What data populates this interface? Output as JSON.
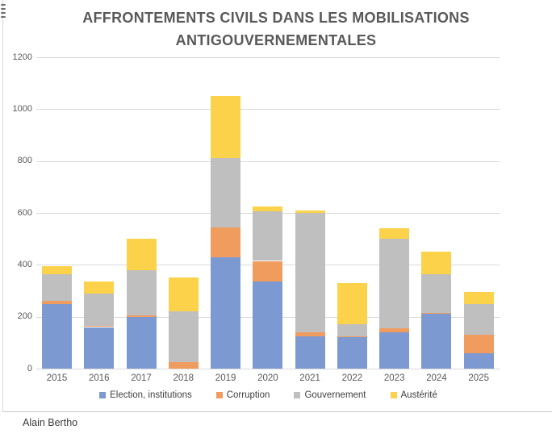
{
  "title": "AFFRONTEMENTS CIVILS DANS LES MOBILISATIONS ANTIGOUVERNEMENTALES",
  "attribution": "Alain Bertho",
  "colors": {
    "blue": "#7c99d2",
    "orange": "#f09c5f",
    "gray": "#bfbfbf",
    "yellow": "#fdd24b",
    "gridline": "#d9d9d9",
    "axis_text": "#595959",
    "title_text": "#595959"
  },
  "chart_data": {
    "type": "bar",
    "stacked": true,
    "title": "AFFRONTEMENTS CIVILS DANS LES MOBILISATIONS ANTIGOUVERNEMENTALES",
    "categories": [
      "2015",
      "2016",
      "2017",
      "2018",
      "2019",
      "2020",
      "2021",
      "2022",
      "2023",
      "2024",
      "2025"
    ],
    "series": [
      {
        "name": "Election, institutions",
        "color": "#7c99d2",
        "values": [
          250,
          160,
          200,
          0,
          430,
          335,
          125,
          120,
          140,
          210,
          60
        ]
      },
      {
        "name": "Corruption",
        "color": "#f09c5f",
        "values": [
          10,
          5,
          5,
          25,
          115,
          80,
          15,
          5,
          15,
          5,
          70
        ]
      },
      {
        "name": "Gouvernement",
        "color": "#bfbfbf",
        "values": [
          105,
          125,
          175,
          195,
          265,
          190,
          460,
          45,
          345,
          150,
          120
        ]
      },
      {
        "name": "Austérité",
        "color": "#fdd24b",
        "values": [
          30,
          45,
          120,
          130,
          240,
          20,
          10,
          160,
          40,
          85,
          45
        ]
      }
    ],
    "totals": [
      395,
      335,
      500,
      350,
      1050,
      625,
      610,
      330,
      540,
      450,
      295
    ],
    "xlabel": "",
    "ylabel": "",
    "ylim": [
      0,
      1200
    ],
    "yticks": [
      "0",
      "200",
      "400",
      "600",
      "800",
      "1000",
      "1200"
    ],
    "grid": true,
    "legend_position": "bottom"
  }
}
